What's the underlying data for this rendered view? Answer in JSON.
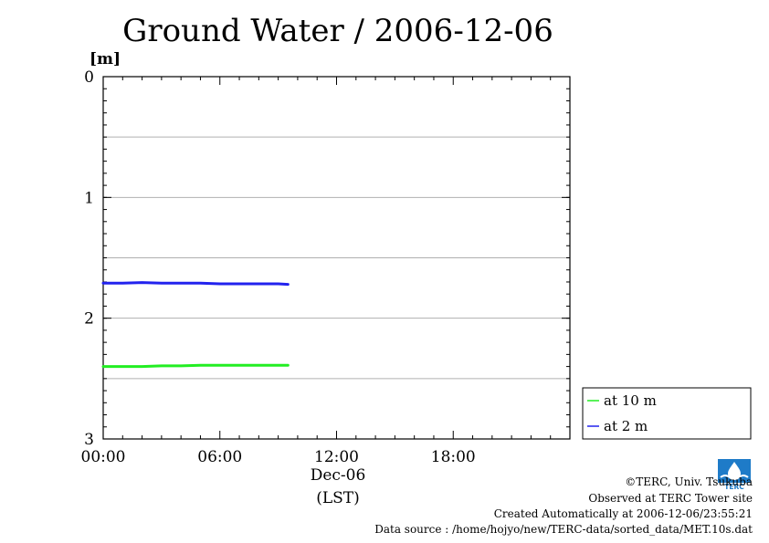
{
  "chart_data": {
    "type": "line",
    "title": "Ground Water / 2006-12-06",
    "ylabel": "[m]",
    "xlabel": "Dec-06",
    "xlabel2": "(LST)",
    "y_inverted": true,
    "ylim": [
      0,
      3
    ],
    "yticks": [
      0,
      1,
      2,
      3
    ],
    "y_minor_grid": [
      0.5,
      1.5,
      2.5
    ],
    "xlim_hours": [
      0,
      24
    ],
    "xticks": [
      {
        "hour": 0,
        "label": "00:00"
      },
      {
        "hour": 6,
        "label": "06:00"
      },
      {
        "hour": 12,
        "label": "12:00"
      },
      {
        "hour": 18,
        "label": "18:00"
      }
    ],
    "grid": "horizontal",
    "legend_position": "right",
    "series": [
      {
        "name": "at 10 m",
        "color": "#22ee22",
        "x": [
          0,
          1,
          2,
          3,
          4,
          5,
          6,
          7,
          8,
          9,
          9.5
        ],
        "y": [
          2.4,
          2.4,
          2.4,
          2.395,
          2.395,
          2.39,
          2.39,
          2.39,
          2.39,
          2.39,
          2.39
        ]
      },
      {
        "name": "at 2 m",
        "color": "#2222ee",
        "x": [
          0,
          1,
          2,
          3,
          4,
          5,
          6,
          7,
          8,
          9,
          9.5
        ],
        "y": [
          1.71,
          1.71,
          1.705,
          1.71,
          1.71,
          1.71,
          1.715,
          1.715,
          1.715,
          1.715,
          1.72
        ]
      }
    ]
  },
  "footer": {
    "copyright": "©TERC, Univ. Tsukuba",
    "observed": "Observed at TERC Tower site",
    "created": "Created Automatically at 2006-12-06/23:55:21",
    "source": "Data source : /home/hojyo/new/TERC-data/sorted_data/MET.10s.dat"
  },
  "logo": {
    "text": "TERC",
    "color": "#1e7bc8"
  }
}
